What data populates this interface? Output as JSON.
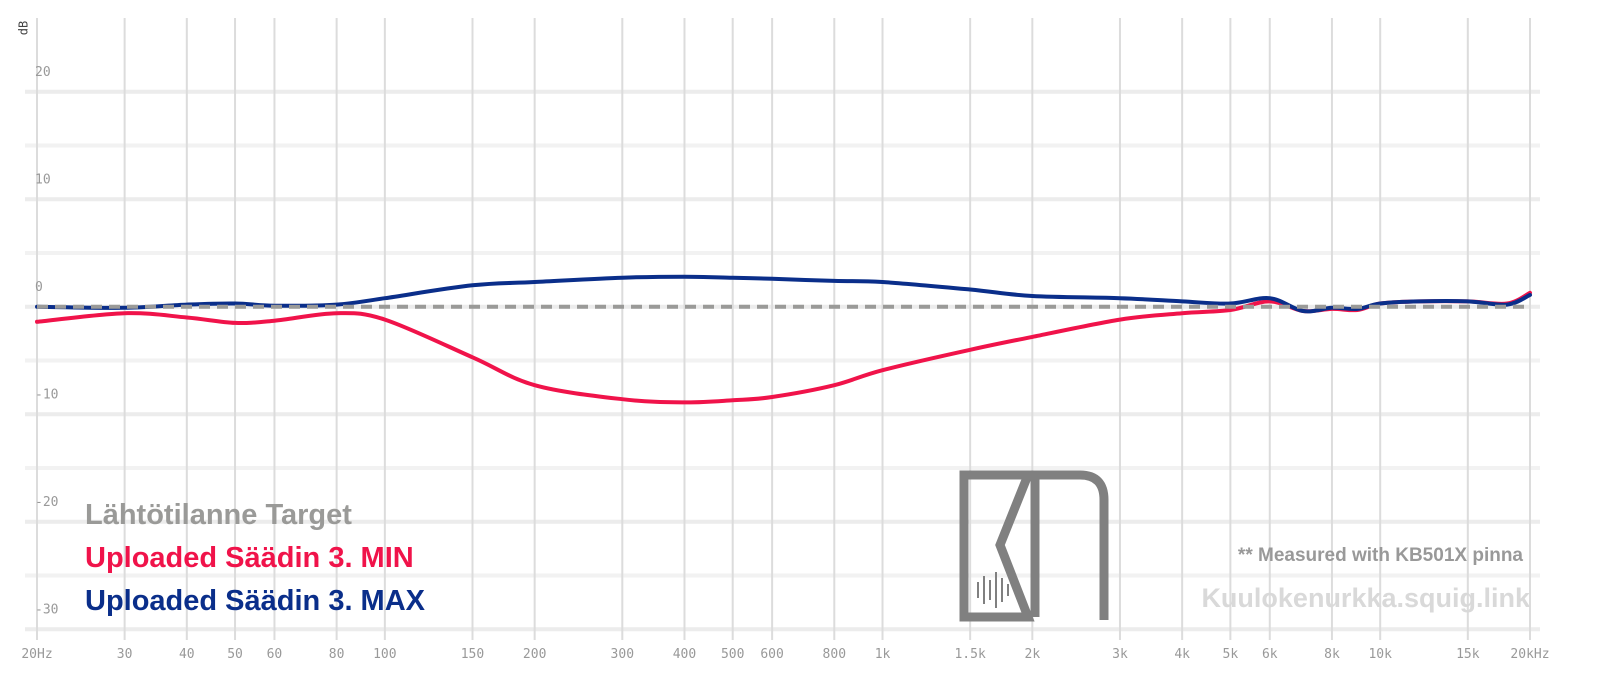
{
  "chart_data": {
    "type": "line",
    "y_label": "dB",
    "x": [
      20,
      30,
      40,
      50,
      60,
      80,
      100,
      150,
      200,
      300,
      400,
      500,
      600,
      800,
      1000,
      1500,
      2000,
      3000,
      4000,
      5000,
      6000,
      7000,
      8000,
      9000,
      10000,
      12000,
      15000,
      18000,
      20000
    ],
    "series": [
      {
        "name": "Uploaded Säädin 3. MIN",
        "color": "#f0134a",
        "linestyle": "solid",
        "values": [
          -1.4,
          -0.6,
          -1.0,
          -1.5,
          -1.3,
          -0.6,
          -1.2,
          -4.7,
          -7.3,
          -8.6,
          -8.9,
          -8.7,
          -8.4,
          -7.3,
          -5.9,
          -4.0,
          -2.8,
          -1.2,
          -0.6,
          -0.3,
          0.5,
          -0.4,
          -0.2,
          -0.3,
          0.3,
          0.5,
          0.5,
          0.3,
          1.3
        ]
      },
      {
        "name": "Uploaded Säädin 3. MAX",
        "color": "#0a2e8a",
        "linestyle": "solid",
        "values": [
          0,
          -0.1,
          0.2,
          0.3,
          0.1,
          0.2,
          0.8,
          2.0,
          2.3,
          2.7,
          2.8,
          2.7,
          2.6,
          2.4,
          2.3,
          1.6,
          1.0,
          0.8,
          0.5,
          0.3,
          0.8,
          -0.4,
          -0.1,
          -0.2,
          0.3,
          0.5,
          0.5,
          0.2,
          1.1
        ]
      },
      {
        "name": "Lähtötilanne Target",
        "color": "#9a9a98",
        "linestyle": "dashed",
        "values": [
          0,
          0,
          0,
          0,
          0,
          0,
          0,
          0,
          0,
          0,
          0,
          0,
          0,
          0,
          0,
          0,
          0,
          0,
          0,
          0,
          0,
          0,
          0,
          0,
          0,
          0,
          0,
          0,
          0
        ]
      }
    ],
    "legend_order": [
      2,
      0,
      1
    ],
    "legend": "lower left",
    "xlog": true,
    "xlim": [
      20,
      20000
    ],
    "xticks": [
      {
        "value": 20,
        "label": "20Hz"
      },
      30,
      40,
      50,
      60,
      80,
      100,
      150,
      200,
      300,
      400,
      500,
      600,
      800,
      {
        "value": 1000,
        "label": "1k"
      },
      {
        "value": 1500,
        "label": "1.5k"
      },
      {
        "value": 2000,
        "label": "2k"
      },
      {
        "value": 3000,
        "label": "3k"
      },
      {
        "value": 4000,
        "label": "4k"
      },
      {
        "value": 5000,
        "label": "5k"
      },
      {
        "value": 6000,
        "label": "6k"
      },
      {
        "value": 8000,
        "label": "8k"
      },
      {
        "value": 10000,
        "label": "10k"
      },
      {
        "value": 15000,
        "label": "15k"
      },
      {
        "value": 20000,
        "label": "20kHz"
      }
    ],
    "ylim": [
      -31,
      25
    ],
    "yticks": [
      20,
      10,
      0,
      -10,
      -20,
      -30
    ],
    "grid": true,
    "annotation": "** Measured with KB501X pinna",
    "watermark": "Kuulokenurkka.squig.link"
  }
}
